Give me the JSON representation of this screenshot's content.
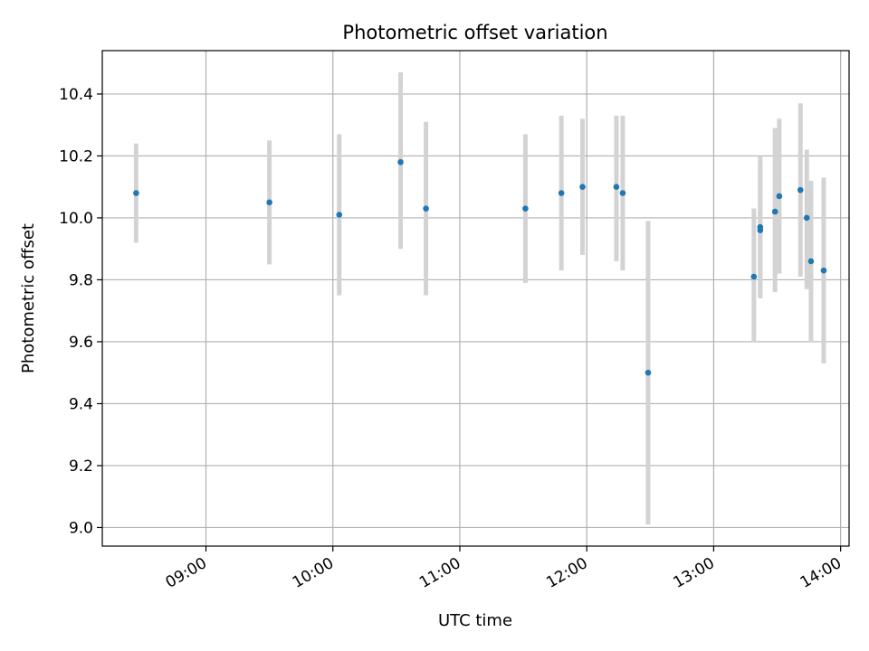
{
  "chart_data": {
    "type": "scatter",
    "title": "Photometric offset variation",
    "xlabel": "UTC time",
    "ylabel": "Photometric offset",
    "xlim": [
      "08:11",
      "14:04"
    ],
    "ylim": [
      8.94,
      10.54
    ],
    "grid": true,
    "x_ticks": [
      "09:00",
      "10:00",
      "11:00",
      "12:00",
      "13:00",
      "14:00"
    ],
    "y_ticks": [
      "9.0",
      "9.2",
      "9.4",
      "9.6",
      "9.8",
      "10.0",
      "10.2",
      "10.4"
    ],
    "colors": {
      "point": "#1f77b4",
      "errorbar": "#d3d3d3",
      "grid": "#b0b0b0"
    },
    "series": [
      {
        "points": [
          {
            "x": "08:27",
            "y": 10.08,
            "lo": 9.92,
            "hi": 10.24
          },
          {
            "x": "09:30",
            "y": 10.05,
            "lo": 9.85,
            "hi": 10.25
          },
          {
            "x": "10:03",
            "y": 10.01,
            "lo": 9.75,
            "hi": 10.27
          },
          {
            "x": "10:32",
            "y": 10.18,
            "lo": 9.9,
            "hi": 10.47
          },
          {
            "x": "10:44",
            "y": 10.03,
            "lo": 9.75,
            "hi": 10.31
          },
          {
            "x": "11:31",
            "y": 10.03,
            "lo": 9.79,
            "hi": 10.27
          },
          {
            "x": "11:48",
            "y": 10.08,
            "lo": 9.83,
            "hi": 10.33
          },
          {
            "x": "11:58",
            "y": 10.1,
            "lo": 9.88,
            "hi": 10.32
          },
          {
            "x": "12:14",
            "y": 10.1,
            "lo": 9.86,
            "hi": 10.33
          },
          {
            "x": "12:17",
            "y": 10.08,
            "lo": 9.83,
            "hi": 10.33
          },
          {
            "x": "12:29",
            "y": 9.5,
            "lo": 9.01,
            "hi": 9.99
          },
          {
            "x": "13:19",
            "y": 9.81,
            "lo": 9.6,
            "hi": 10.03
          },
          {
            "x": "13:22",
            "y": 9.97,
            "lo": 9.74,
            "hi": 10.2
          },
          {
            "x": "13:22",
            "y": 9.96,
            "lo": 9.75,
            "hi": 10.18
          },
          {
            "x": "13:29",
            "y": 10.02,
            "lo": 9.76,
            "hi": 10.29
          },
          {
            "x": "13:31",
            "y": 10.07,
            "lo": 9.82,
            "hi": 10.32
          },
          {
            "x": "13:41",
            "y": 10.09,
            "lo": 9.81,
            "hi": 10.37
          },
          {
            "x": "13:44",
            "y": 10.0,
            "lo": 9.77,
            "hi": 10.22
          },
          {
            "x": "13:46",
            "y": 9.86,
            "lo": 9.6,
            "hi": 10.12
          },
          {
            "x": "13:52",
            "y": 9.83,
            "lo": 9.53,
            "hi": 10.13
          }
        ]
      }
    ]
  }
}
